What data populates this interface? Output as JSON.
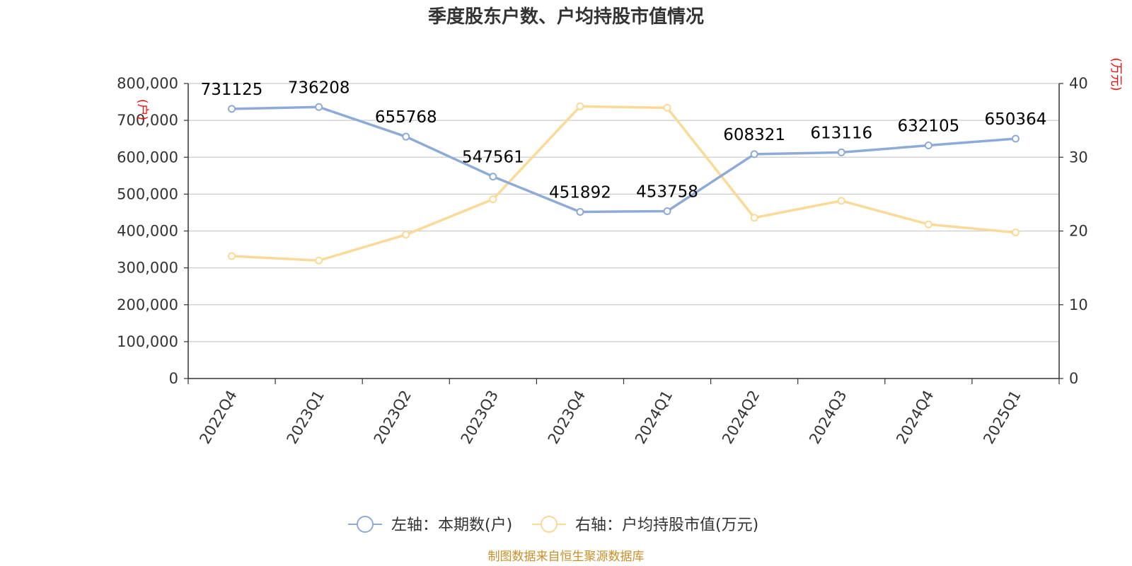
{
  "chart_data": {
    "type": "line",
    "title": "季度股东户数、户均持股市值情况",
    "categories": [
      "2022Q4",
      "2023Q1",
      "2023Q2",
      "2023Q3",
      "2023Q4",
      "2024Q1",
      "2024Q2",
      "2024Q3",
      "2024Q4",
      "2025Q1"
    ],
    "left_axis": {
      "unit": "(户)",
      "ylim": [
        0,
        800000
      ],
      "ticks": [
        "0",
        "100,000",
        "200,000",
        "300,000",
        "400,000",
        "500,000",
        "600,000",
        "700,000",
        "800,000"
      ]
    },
    "right_axis": {
      "unit": "(万元)",
      "ylim": [
        0,
        40
      ],
      "ticks": [
        "0",
        "10",
        "20",
        "30",
        "40"
      ]
    },
    "series": [
      {
        "name": "左轴：本期数(户)",
        "axis": "left",
        "color": "#8eabd8",
        "values": [
          731125,
          736208,
          655768,
          547561,
          451892,
          453758,
          608321,
          613116,
          632105,
          650364
        ],
        "labels": [
          "731125",
          "736208",
          "655768",
          "547561",
          "451892",
          "453758",
          "608321",
          "613116",
          "632105",
          "650364"
        ]
      },
      {
        "name": "右轴：户均持股市值(万元)",
        "axis": "right",
        "color": "#fbd997",
        "values": [
          16.6,
          16.0,
          19.5,
          24.3,
          36.9,
          36.7,
          21.8,
          24.1,
          20.9,
          19.8
        ]
      }
    ],
    "grid": true,
    "legend_position": "bottom"
  },
  "footer": {
    "source": "制图数据来自恒生聚源数据库"
  }
}
